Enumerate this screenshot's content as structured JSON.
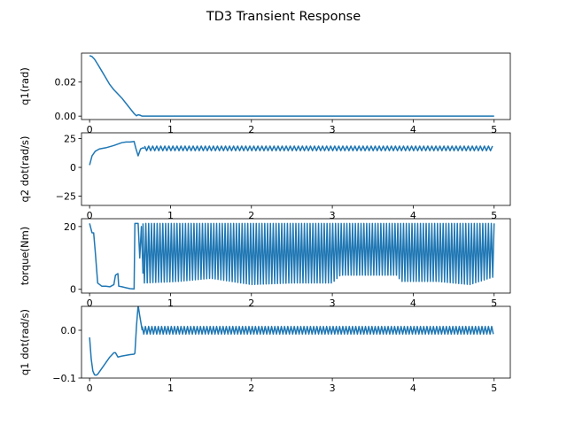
{
  "colors": {
    "line": "#1f77b4",
    "axes": "#000000",
    "background": "#ffffff"
  },
  "figure": {
    "title": "TD3 Transient Response"
  },
  "chart_data": [
    {
      "type": "line",
      "ylabel": "q1(rad)",
      "xlim": [
        -0.1,
        5.2
      ],
      "ylim": [
        -0.002,
        0.037
      ],
      "xticks": [
        0,
        1,
        2,
        3,
        4,
        5
      ],
      "xtick_labels": [
        "0",
        "1",
        "2",
        "3",
        "4",
        "5"
      ],
      "yticks": [
        0.0,
        0.02
      ],
      "ytick_labels": [
        "0.00",
        "0.02"
      ],
      "grid": false,
      "series": [
        {
          "kind": "points",
          "x": [
            0.0,
            0.03,
            0.06,
            0.1,
            0.15,
            0.2,
            0.25,
            0.3,
            0.35,
            0.4,
            0.45,
            0.5,
            0.55,
            0.58,
            0.6,
            0.62,
            0.65,
            0.7,
            1.0,
            2.0,
            3.0,
            4.0,
            5.0
          ],
          "y": [
            0.0355,
            0.035,
            0.0335,
            0.0305,
            0.0265,
            0.0225,
            0.0185,
            0.0155,
            0.013,
            0.0105,
            0.0075,
            0.0045,
            0.0015,
            0.0002,
            0.0008,
            0.0006,
            0.0,
            0.0,
            0.0,
            0.0,
            0.0,
            0.0,
            0.0
          ]
        }
      ]
    },
    {
      "type": "line",
      "ylabel": "q2 dot(rad/s)",
      "xlim": [
        -0.1,
        5.2
      ],
      "ylim": [
        -33,
        30
      ],
      "xticks": [
        0,
        1,
        2,
        3,
        4,
        5
      ],
      "xtick_labels": [
        "0",
        "1",
        "2",
        "3",
        "4",
        "5"
      ],
      "yticks": [
        -25,
        0,
        25
      ],
      "ytick_labels": [
        "−25",
        "0",
        "25"
      ],
      "grid": false,
      "series": [
        {
          "kind": "points",
          "x": [
            0.0,
            0.03,
            0.07,
            0.12,
            0.2,
            0.3,
            0.4,
            0.45,
            0.5,
            0.55,
            0.57,
            0.6,
            0.63,
            0.66,
            0.68
          ],
          "y": [
            2,
            10,
            14,
            16,
            17,
            19,
            21.5,
            22,
            22,
            22.5,
            17,
            10,
            16,
            17,
            16.5
          ]
        },
        {
          "kind": "oscillation",
          "x_start": 0.68,
          "x_end": 5.0,
          "period": 0.05,
          "low": 14.5,
          "high": 18.5
        }
      ]
    },
    {
      "type": "line",
      "ylabel": "torque(Nm)",
      "xlim": [
        -0.1,
        5.2
      ],
      "ylim": [
        -1.2,
        22.5
      ],
      "xticks": [
        0,
        1,
        2,
        3,
        4,
        5
      ],
      "xtick_labels": [
        "0",
        "1",
        "2",
        "3",
        "4",
        "5"
      ],
      "yticks": [
        0,
        20
      ],
      "ytick_labels": [
        "0",
        "20"
      ],
      "grid": false,
      "series": [
        {
          "kind": "points",
          "x": [
            0.0,
            0.02,
            0.03,
            0.05,
            0.07,
            0.1,
            0.15,
            0.2,
            0.25,
            0.3,
            0.32,
            0.35,
            0.36,
            0.4,
            0.45,
            0.5,
            0.55,
            0.56,
            0.6,
            0.62,
            0.64,
            0.66
          ],
          "y": [
            21,
            19,
            18,
            18,
            12,
            2,
            1,
            1,
            0.8,
            1.5,
            4.5,
            5,
            1,
            0.8,
            0.5,
            0.2,
            0.1,
            21,
            21,
            10,
            20,
            5
          ]
        },
        {
          "kind": "band",
          "x_start": 0.66,
          "x_end": 5.0,
          "period": 0.035,
          "high": 21,
          "lows": [
            {
              "x": 0.66,
              "y": 2
            },
            {
              "x": 1.1,
              "y": 2.5
            },
            {
              "x": 1.5,
              "y": 3.5
            },
            {
              "x": 2.0,
              "y": 1.5
            },
            {
              "x": 2.5,
              "y": 2
            },
            {
              "x": 3.0,
              "y": 2
            },
            {
              "x": 3.1,
              "y": 4.5
            },
            {
              "x": 3.8,
              "y": 4.5
            },
            {
              "x": 3.85,
              "y": 2.5
            },
            {
              "x": 4.3,
              "y": 2.5
            },
            {
              "x": 4.7,
              "y": 1.5
            },
            {
              "x": 5.0,
              "y": 4
            }
          ]
        }
      ]
    },
    {
      "type": "line",
      "ylabel": "q1 dot(rad/s)",
      "xlim": [
        -0.1,
        5.2
      ],
      "ylim": [
        -0.1,
        0.05
      ],
      "xticks": [
        0,
        1,
        2,
        3,
        4,
        5
      ],
      "xtick_labels": [
        "0",
        "1",
        "2",
        "3",
        "4",
        "5"
      ],
      "yticks": [
        -0.1,
        0.0
      ],
      "ytick_labels": [
        "−0.1",
        "0.0"
      ],
      "grid": false,
      "series": [
        {
          "kind": "points",
          "x": [
            0.0,
            0.02,
            0.04,
            0.06,
            0.08,
            0.1,
            0.15,
            0.2,
            0.25,
            0.3,
            0.32,
            0.35,
            0.4,
            0.5,
            0.55,
            0.56,
            0.58,
            0.6,
            0.62,
            0.65
          ],
          "y": [
            -0.015,
            -0.06,
            -0.085,
            -0.093,
            -0.094,
            -0.092,
            -0.08,
            -0.068,
            -0.056,
            -0.047,
            -0.047,
            -0.056,
            -0.054,
            -0.051,
            -0.05,
            -0.048,
            0.01,
            0.052,
            0.03,
            0.0
          ]
        },
        {
          "kind": "oscillation",
          "x_start": 0.65,
          "x_end": 5.0,
          "period": 0.04,
          "low": -0.008,
          "high": 0.008
        }
      ]
    }
  ]
}
